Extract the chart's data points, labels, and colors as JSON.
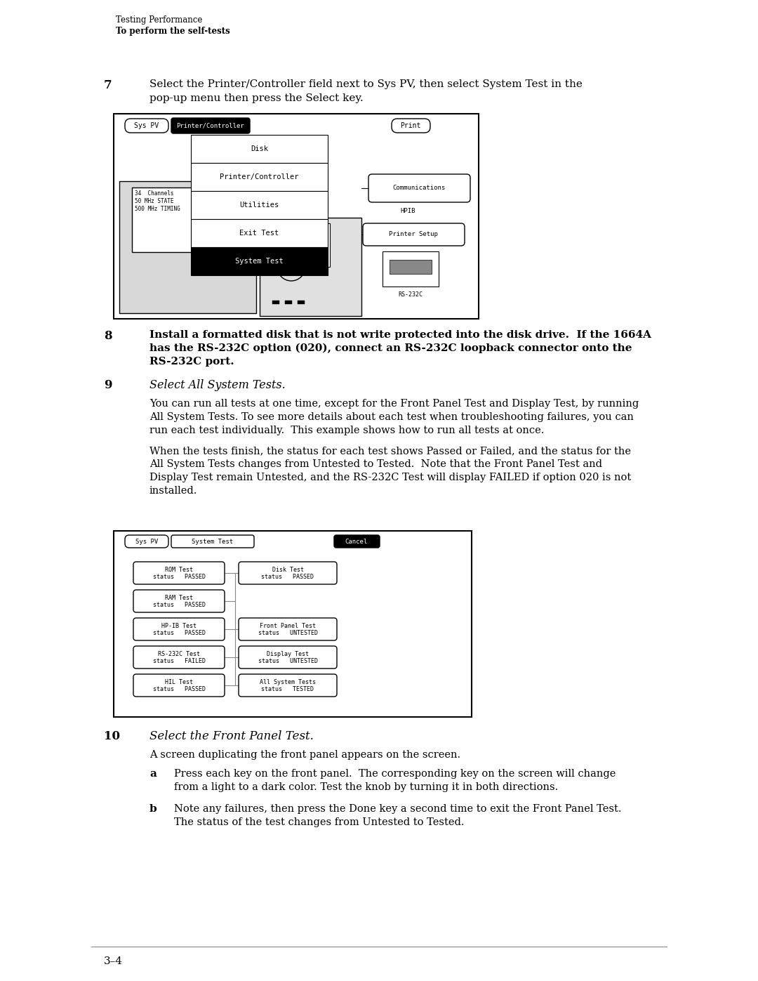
{
  "bg_color": "#ffffff",
  "header_line1": "Testing Performance",
  "header_line2": "To perform the self-tests",
  "step7_num": "7",
  "step7_text_l1": "Select the Printer/Controller field next to Sys PV, then select System Test in the",
  "step7_text_l2": "pop-up menu then press the Select key.",
  "step8_num": "8",
  "step8_text_l1": "Install a formatted disk that is not write protected into the disk drive.  If the 1664A",
  "step8_text_l2": "has the RS-232C option (020), connect an RS-232C loopback connector onto the",
  "step8_text_l3": "RS-232C port.",
  "step9_num": "9",
  "step9_title": "Select All System Tests.",
  "step9_para1_l1": "You can run all tests at one time, except for the Front Panel Test and Display Test, by running",
  "step9_para1_l2": "All System Tests. To see more details about each test when troubleshooting failures, you can",
  "step9_para1_l3": "run each test individually.  This example shows how to run all tests at once.",
  "step9_para2_l1": "When the tests finish, the status for each test shows Passed or Failed, and the status for the",
  "step9_para2_l2": "All System Tests changes from Untested to Tested.  Note that the Front Panel Test and",
  "step9_para2_l3": "Display Test remain Untested, and the RS-232C Test will display FAILED if option 020 is not",
  "step9_para2_l4": "installed.",
  "step10_num": "10",
  "step10_title": "Select the Front Panel Test.",
  "step10_para": "A screen duplicating the front panel appears on the screen.",
  "step10a_label": "a",
  "step10a_l1": "Press each key on the front panel.  The corresponding key on the screen will change",
  "step10a_l2": "from a light to a dark color. Test the knob by turning it in both directions.",
  "step10b_label": "b",
  "step10b_l1": "Note any failures, then press the Done key a second time to exit the Front Panel Test.",
  "step10b_l2": "The status of the test changes from Untested to Tested.",
  "footer_text": "3–4",
  "text_color": "#000000"
}
